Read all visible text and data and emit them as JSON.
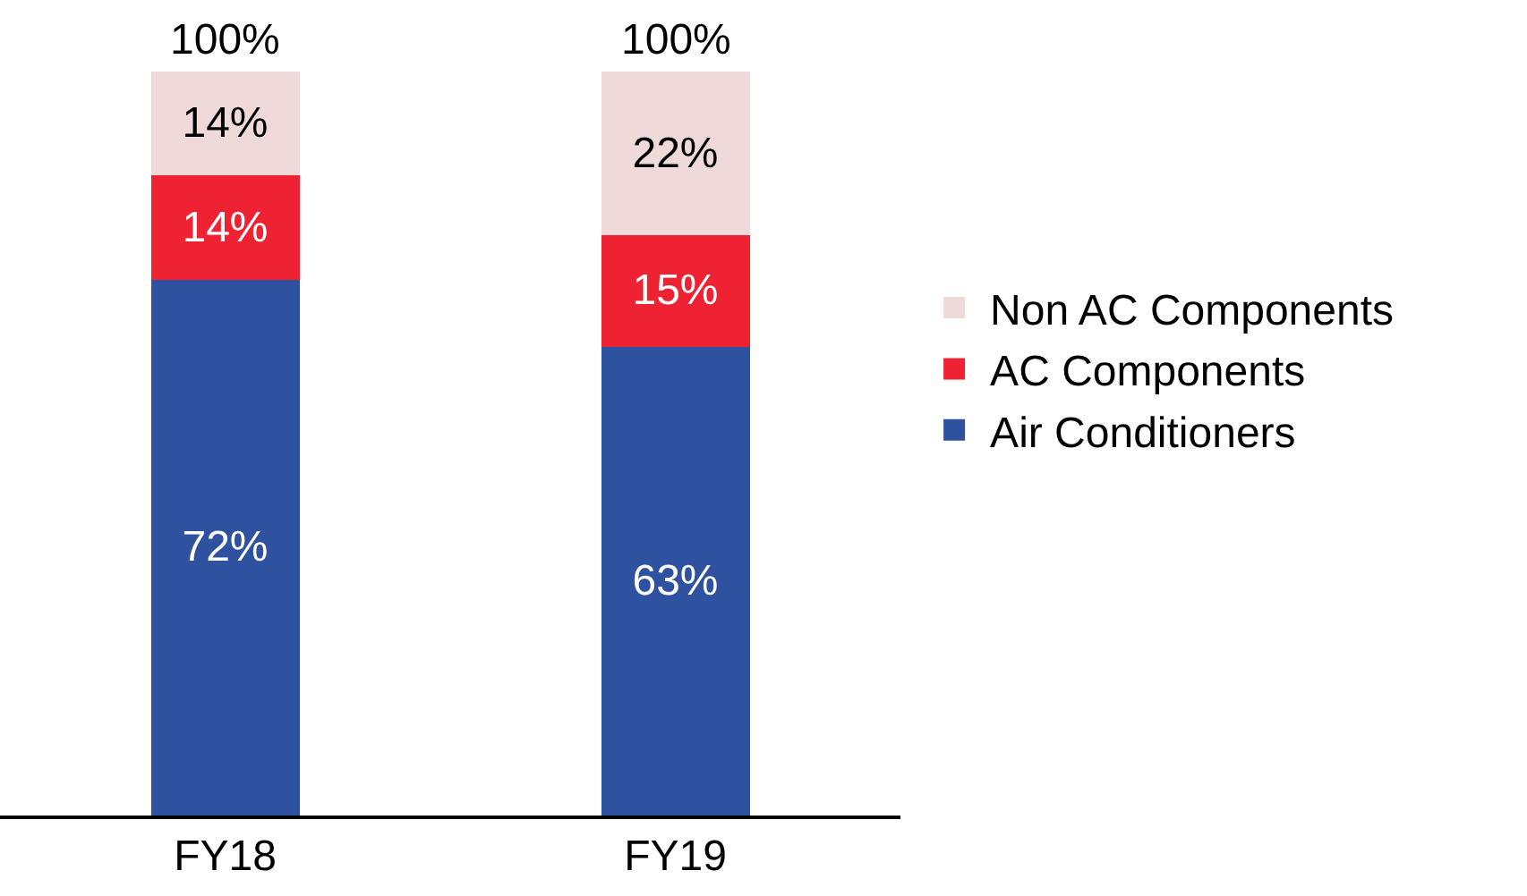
{
  "chart_data": {
    "type": "bar",
    "stacked": true,
    "categories": [
      "FY18",
      "FY19"
    ],
    "series": [
      {
        "name": "Air Conditioners",
        "color": "#2f52a0",
        "values": [
          72,
          63
        ],
        "value_labels": [
          "72%",
          "63%"
        ]
      },
      {
        "name": "AC Components",
        "color": "#ee2233",
        "values": [
          14,
          15
        ],
        "value_labels": [
          "14%",
          "15%"
        ]
      },
      {
        "name": "Non AC Components",
        "color": "#f0d9d9",
        "values": [
          14,
          22
        ],
        "value_labels": [
          "14%",
          "22%"
        ]
      }
    ],
    "totals": [
      "100%",
      "100%"
    ],
    "legend": "right",
    "grid": false
  }
}
